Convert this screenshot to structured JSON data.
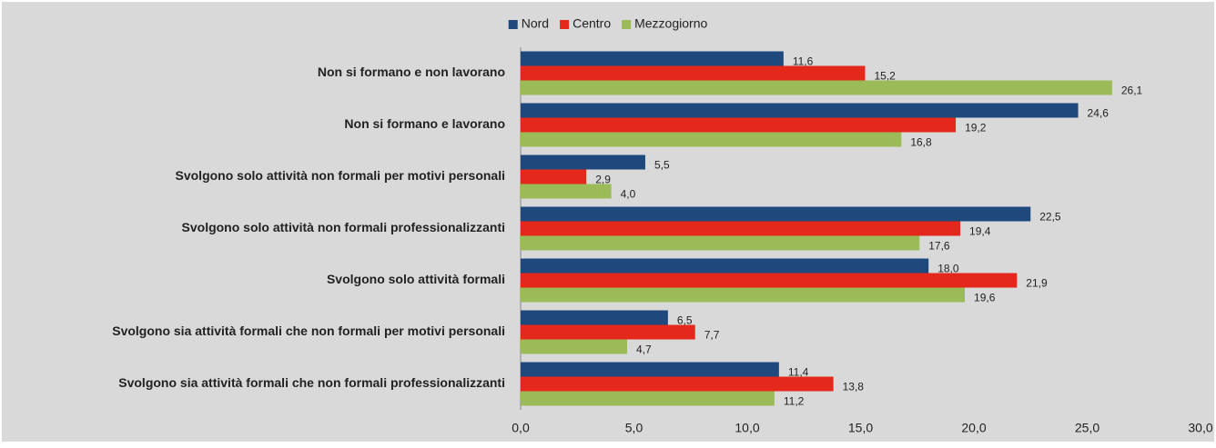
{
  "chart_data": {
    "type": "hbar",
    "categories": [
      "Non si formano e non lavorano",
      "Non si formano e lavorano",
      "Svolgono solo attività non formali per motivi personali",
      "Svolgono solo attività non formali professionalizzanti",
      "Svolgono solo attività formali",
      "Svolgono sia attività formali che non formali per motivi personali",
      "Svolgono sia attività formali che non formali professionalizzanti"
    ],
    "series": [
      {
        "name": "Nord",
        "color": "#1f497d",
        "values": [
          11.6,
          24.6,
          5.5,
          22.5,
          18.0,
          6.5,
          11.4
        ],
        "value_labels": [
          "11,6",
          "24,6",
          "5,5",
          "22,5",
          "18,0",
          "6,5",
          "11,4"
        ]
      },
      {
        "name": "Centro",
        "color": "#e4281c",
        "values": [
          15.2,
          19.2,
          2.9,
          19.4,
          21.9,
          7.7,
          13.8
        ],
        "value_labels": [
          "15,2",
          "19,2",
          "2,9",
          "19,4",
          "21,9",
          "7,7",
          "13,8"
        ]
      },
      {
        "name": "Mezzogiorno",
        "color": "#9bbb59",
        "values": [
          26.1,
          16.8,
          4.0,
          17.6,
          19.6,
          4.7,
          11.2
        ],
        "value_labels": [
          "26,1",
          "16,8",
          "4,0",
          "17,6",
          "19,6",
          "4,7",
          "11,2"
        ]
      }
    ],
    "xlim": [
      0,
      30
    ],
    "xticks": [
      {
        "value": 0,
        "label": "0,0"
      },
      {
        "value": 5,
        "label": "5,0"
      },
      {
        "value": 10,
        "label": "10,0"
      },
      {
        "value": 15,
        "label": "15,0"
      },
      {
        "value": 20,
        "label": "20,0"
      },
      {
        "value": 25,
        "label": "25,0"
      },
      {
        "value": 30,
        "label": "30,0"
      }
    ],
    "legend": "top"
  }
}
